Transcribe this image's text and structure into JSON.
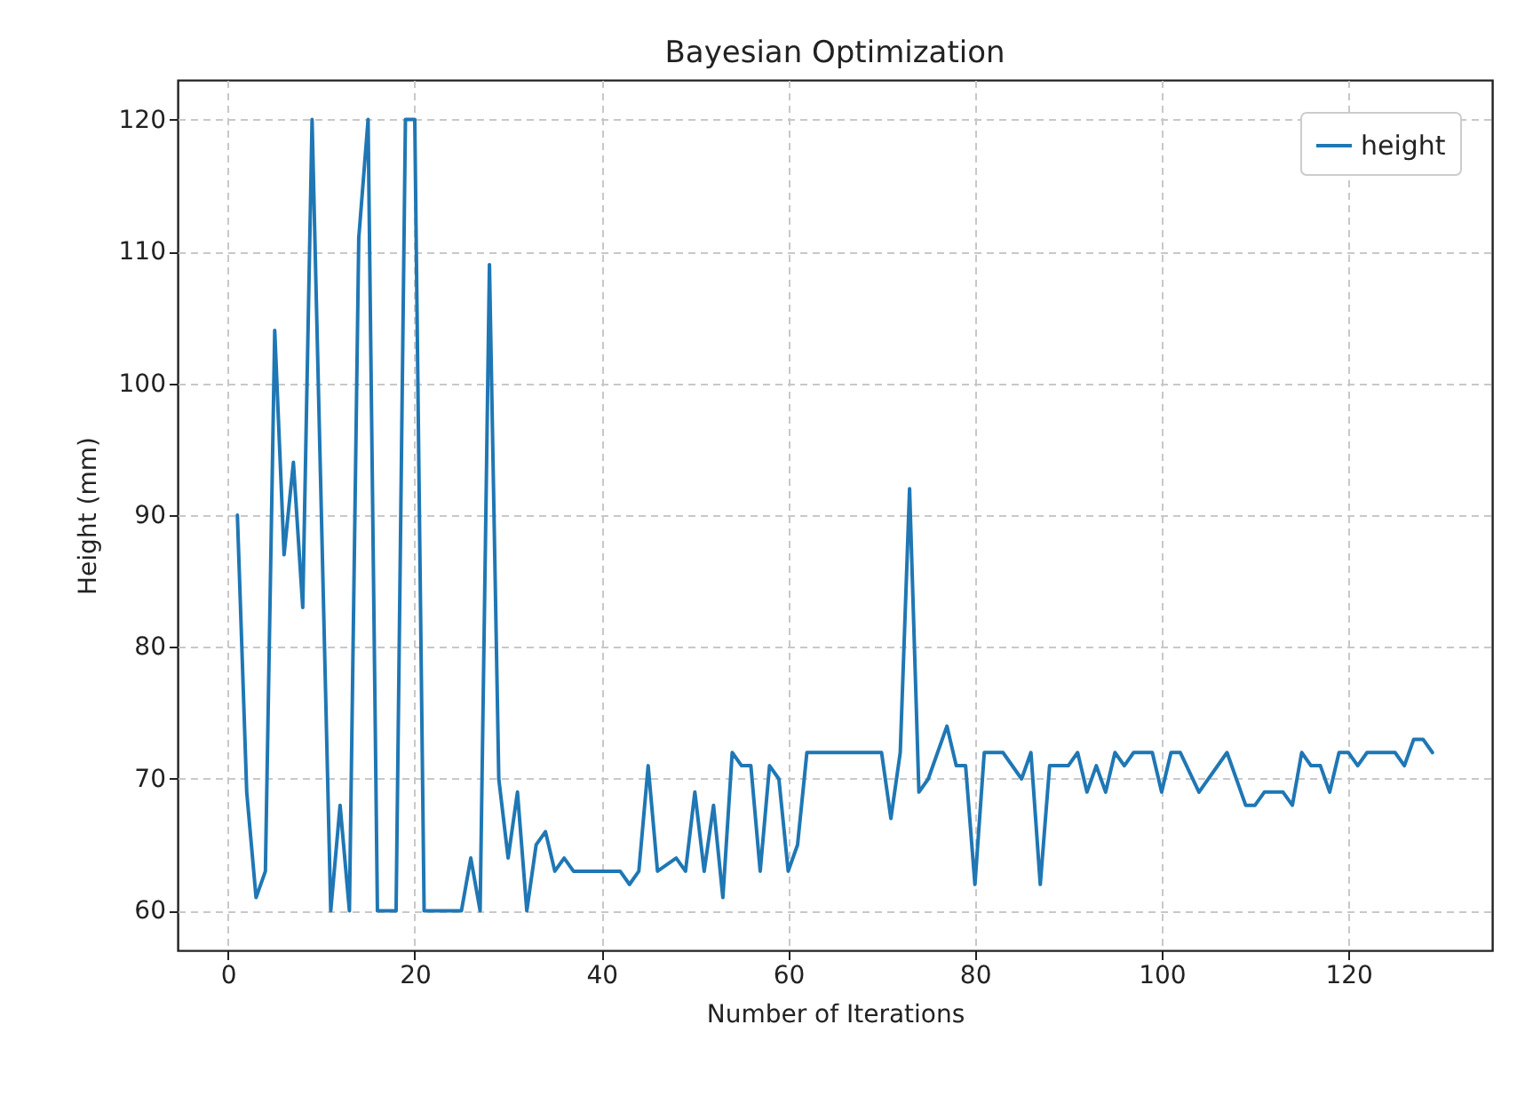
{
  "chart_data": {
    "type": "line",
    "title": "Bayesian Optimization",
    "xlabel": "Number of Iterations",
    "ylabel": "Height (mm)",
    "series": [
      {
        "name": "height",
        "color": "#1f77b4",
        "x": [
          1,
          2,
          3,
          4,
          5,
          6,
          7,
          8,
          9,
          11,
          12,
          13,
          14,
          15,
          16,
          18,
          19,
          20,
          21,
          25,
          26,
          27,
          28,
          29,
          30,
          31,
          32,
          33,
          34,
          35,
          36,
          37,
          42,
          43,
          44,
          45,
          46,
          48,
          49,
          50,
          51,
          52,
          53,
          54,
          55,
          56,
          57,
          58,
          59,
          60,
          61,
          62,
          70,
          71,
          72,
          73,
          74,
          75,
          77,
          78,
          79,
          80,
          81,
          83,
          85,
          86,
          87,
          88,
          90,
          91,
          92,
          93,
          94,
          95,
          96,
          97,
          99,
          100,
          101,
          102,
          104,
          107,
          109,
          110,
          111,
          113,
          114,
          115,
          116,
          117,
          118,
          119,
          120,
          121,
          122,
          125,
          126,
          127,
          128,
          129
        ],
        "values": [
          90,
          69,
          61,
          63,
          104,
          87,
          94,
          83,
          120,
          60,
          68,
          60,
          111,
          120,
          60,
          60,
          120,
          120,
          60,
          60,
          64,
          60,
          109,
          70,
          64,
          69,
          60,
          65,
          66,
          63,
          64,
          63,
          63,
          62,
          63,
          71,
          63,
          64,
          63,
          69,
          63,
          68,
          61,
          72,
          71,
          71,
          63,
          71,
          70,
          63,
          65,
          72,
          72,
          67,
          72,
          92,
          69,
          70,
          74,
          71,
          71,
          62,
          72,
          72,
          70,
          72,
          62,
          71,
          71,
          72,
          69,
          71,
          69,
          72,
          71,
          72,
          72,
          69,
          72,
          72,
          69,
          72,
          68,
          68,
          69,
          69,
          68,
          72,
          71,
          71,
          69,
          72,
          72,
          71,
          72,
          72,
          71,
          73,
          73,
          72
        ]
      }
    ],
    "xlim": [
      -5.4,
      135.4
    ],
    "xticks": [
      0,
      20,
      40,
      60,
      80,
      100,
      120
    ],
    "ylim": [
      57,
      123
    ],
    "yticks": [
      60,
      70,
      80,
      90,
      100,
      110,
      120
    ],
    "grid": true,
    "legend": "top right"
  }
}
